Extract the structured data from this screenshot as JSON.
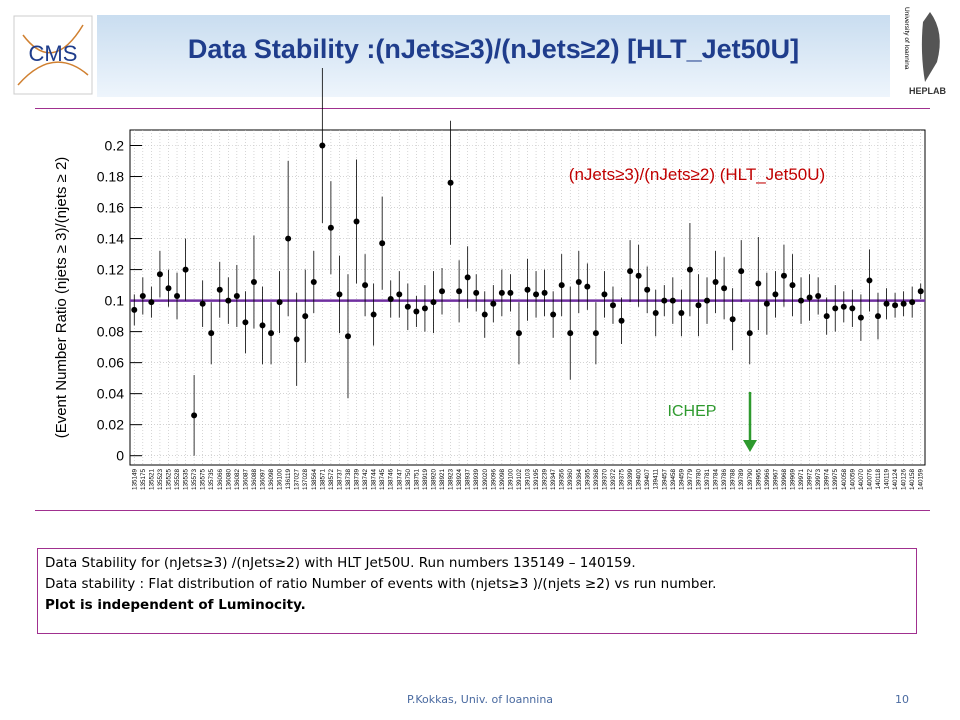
{
  "logo_left": "CMS",
  "logo_right": {
    "university": "University of Ioannina",
    "lab": "HEPLAB"
  },
  "chart_data": {
    "type": "scatter",
    "title": "Data Stability :(nJets≥3)/(nJets≥2) [HLT_Jet50U]",
    "y_label": "(Event Number Ratio (njets ≥ 3)/(njets ≥ 2)",
    "legend_text": "(nJets≥3)/(nJets≥2) (HLT_Jet50U)",
    "annotation": "ICHEP",
    "categories": [
      "135149",
      "135175",
      "135521",
      "135523",
      "135525",
      "135528",
      "135535",
      "135573",
      "135575",
      "135735",
      "136066",
      "136080",
      "136082",
      "136087",
      "136088",
      "136097",
      "136098",
      "136100",
      "136119",
      "137027",
      "137028",
      "138564",
      "138571",
      "138572",
      "138737",
      "138738",
      "138739",
      "138742",
      "138744",
      "138745",
      "138746",
      "138747",
      "138750",
      "138751",
      "138919",
      "138920",
      "138921",
      "138923",
      "138924",
      "138937",
      "138939",
      "139020",
      "139096",
      "139098",
      "139100",
      "139102",
      "139103",
      "139195",
      "139239",
      "139347",
      "139356",
      "139360",
      "139364",
      "139365",
      "139368",
      "139370",
      "139372",
      "139375",
      "139399",
      "139400",
      "139407",
      "139411",
      "139457",
      "139458",
      "139459",
      "139779",
      "139780",
      "139781",
      "139784",
      "139786",
      "139788",
      "139789",
      "139790",
      "139965",
      "139966",
      "139967",
      "139968",
      "139969",
      "139971",
      "139972",
      "139973",
      "139974",
      "139975",
      "140058",
      "140059",
      "140070",
      "140076",
      "140118",
      "140119",
      "140124",
      "140126",
      "140158",
      "140159"
    ],
    "values": [
      0.094,
      0.103,
      0.099,
      0.117,
      0.108,
      0.103,
      0.12,
      0.026,
      0.098,
      0.079,
      0.107,
      0.1,
      0.103,
      0.086,
      0.112,
      0.084,
      0.079,
      0.099,
      0.14,
      0.075,
      0.09,
      0.112,
      0.2,
      0.147,
      0.104,
      0.077,
      0.151,
      0.11,
      0.091,
      0.137,
      0.101,
      0.104,
      0.096,
      0.093,
      0.095,
      0.099,
      0.106,
      0.176,
      0.106,
      0.115,
      0.105,
      0.091,
      0.098,
      0.105,
      0.105,
      0.079,
      0.107,
      0.104,
      0.105,
      0.091,
      0.11,
      0.079,
      0.112,
      0.109,
      0.079,
      0.104,
      0.097,
      0.087,
      0.119,
      0.116,
      0.107,
      0.092,
      0.1,
      0.1,
      0.092,
      0.12,
      0.097,
      0.1,
      0.112,
      0.108,
      0.088,
      0.119,
      0.079,
      0.111,
      0.098,
      0.104,
      0.116,
      0.11,
      0.1,
      0.102,
      0.103,
      0.09,
      0.095,
      0.096,
      0.095,
      0.089,
      0.113,
      0.09,
      0.098,
      0.097,
      0.098,
      0.099,
      0.106
    ],
    "errors": [
      0.01,
      0.012,
      0.01,
      0.015,
      0.012,
      0.015,
      0.02,
      0.026,
      0.015,
      0.02,
      0.018,
      0.015,
      0.02,
      0.02,
      0.03,
      0.025,
      0.02,
      0.02,
      0.05,
      0.03,
      0.03,
      0.02,
      0.05,
      0.03,
      0.025,
      0.04,
      0.04,
      0.02,
      0.02,
      0.03,
      0.012,
      0.015,
      0.015,
      0.01,
      0.015,
      0.02,
      0.015,
      0.04,
      0.02,
      0.02,
      0.012,
      0.015,
      0.012,
      0.015,
      0.012,
      0.02,
      0.02,
      0.015,
      0.015,
      0.015,
      0.02,
      0.03,
      0.02,
      0.015,
      0.02,
      0.015,
      0.012,
      0.015,
      0.02,
      0.02,
      0.015,
      0.015,
      0.01,
      0.015,
      0.015,
      0.03,
      0.02,
      0.015,
      0.02,
      0.02,
      0.02,
      0.02,
      0.02,
      0.03,
      0.02,
      0.015,
      0.02,
      0.02,
      0.015,
      0.015,
      0.012,
      0.012,
      0.015,
      0.01,
      0.012,
      0.015,
      0.02,
      0.015,
      0.01,
      0.008,
      0.008,
      0.01,
      0.005
    ],
    "fit_value": 0.1,
    "color": "#000000",
    "fit_color": "#7030a0",
    "legend_color": "#c00000",
    "annotation_color": "#2e9a2e",
    "ylim": [
      -0.006,
      0.21
    ],
    "yticks": [
      0,
      0.02,
      0.04,
      0.06,
      0.08,
      0.1,
      0.12,
      0.14,
      0.16,
      0.18,
      0.2
    ],
    "grid": true
  },
  "caption": {
    "line1": "Data Stability for (nJets≥3) /(nJets≥2)  with HLT Jet50U. Run numbers 135149 – 140159.",
    "line2": "Data stability : Flat distribution of ratio Number of events with (njets≥3 )/(njets ≥2) vs run number.",
    "line3": "Plot is independent of Luminocity."
  },
  "footer": "P.Kokkas, Univ. of Ioannina",
  "page": "10"
}
